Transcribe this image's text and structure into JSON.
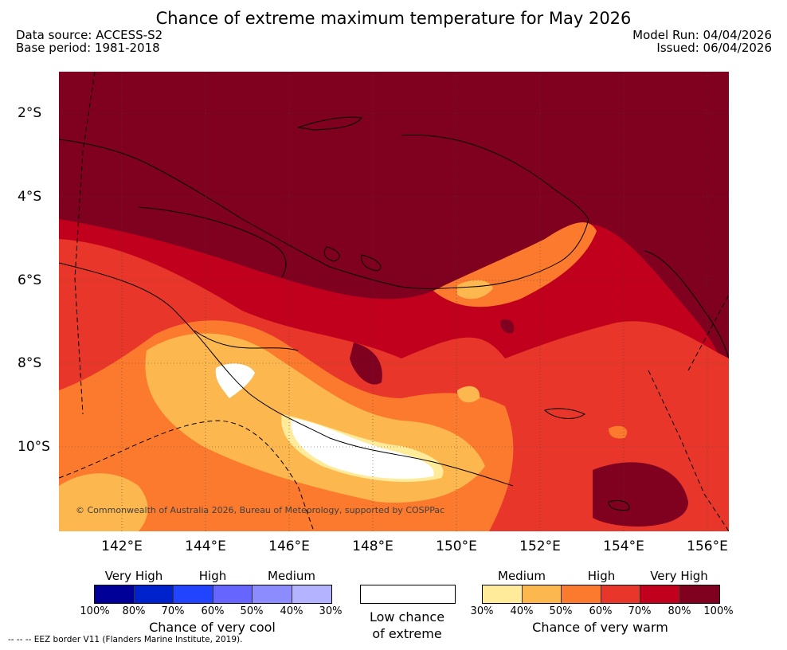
{
  "title": "Chance of extreme maximum temperature for May 2026",
  "meta": {
    "data_source": "Data source: ACCESS-S2",
    "base_period": "Base period: 1981-2018",
    "model_run": "Model Run: 04/04/2026",
    "issued": "Issued: 06/04/2026"
  },
  "map": {
    "region": "Papua New Guinea",
    "lat_labels": [
      "2°S",
      "4°S",
      "6°S",
      "8°S",
      "10°S"
    ],
    "lon_labels": [
      "142°E",
      "144°E",
      "146°E",
      "148°E",
      "150°E",
      "152°E",
      "154°E",
      "156°E"
    ],
    "copyright": "© Commonwealth of Australia 2026, Bureau of Meteorology, supported by COSPPac"
  },
  "legend": {
    "cool": {
      "levels": [
        "Very High",
        "High",
        "Medium"
      ],
      "colors": [
        "#000099",
        "#0022cc",
        "#2244ff",
        "#6666ff",
        "#8c8cff",
        "#b3b3ff"
      ],
      "ticks": [
        "100%",
        "80%",
        "70%",
        "60%",
        "50%",
        "40%",
        "30%"
      ],
      "caption": "Chance of very cool"
    },
    "low": {
      "color": "#ffffff",
      "caption_line1": "Low chance",
      "caption_line2": "of extreme"
    },
    "warm": {
      "levels": [
        "Medium",
        "High",
        "Very High"
      ],
      "colors": [
        "#ffeb99",
        "#fdb74f",
        "#fc7a2d",
        "#e8362a",
        "#c0001c",
        "#800020"
      ],
      "ticks": [
        "30%",
        "40%",
        "50%",
        "60%",
        "70%",
        "80%",
        "100%"
      ],
      "caption": "Chance of very warm"
    }
  },
  "footnote": "--  --  -- EEZ border V11 (Flanders Marine Institute, 2019)."
}
